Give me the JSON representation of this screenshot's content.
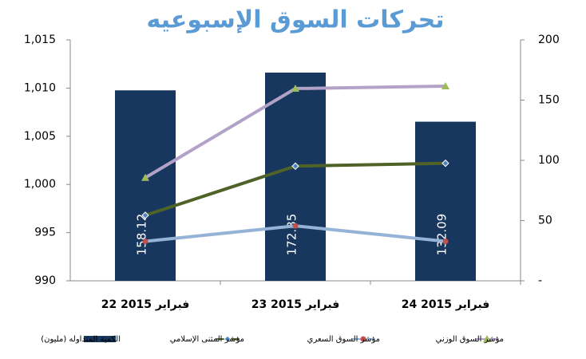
{
  "chart_data": {
    "type": "bar-line",
    "title": "تحركات السوق الإسبوعيه",
    "categories": [
      "22 فبراير 2015",
      "23 فبراير 2015",
      "24 فبراير 2015"
    ],
    "series": [
      {
        "name": "الكمية المتداوله (مليون)",
        "type": "bar",
        "axis": "y2",
        "color": "#17375e",
        "values": [
          158.12,
          172.85,
          132.09
        ]
      },
      {
        "name": "مؤشر المثنى الإسلامي",
        "type": "line",
        "color": "#4f6228",
        "marker_color": "#4f81bd",
        "marker": "diamond",
        "values": [
          996.8,
          1001.9,
          1002.2
        ]
      },
      {
        "name": "مؤشر السوق السعري",
        "type": "line",
        "color": "#95b3d7",
        "marker_color": "#c0504d",
        "marker": "circle",
        "values": [
          994.1,
          995.7,
          994.1
        ]
      },
      {
        "name": "مؤشر السوق الوزني",
        "type": "line",
        "color": "#b3a2c7",
        "marker_color": "#9bbb59",
        "marker": "triangle",
        "values": [
          1000.7,
          1009.95,
          1010.2
        ]
      }
    ],
    "ylim": [
      990,
      1015
    ],
    "yticks": [
      990,
      995,
      {
        "value": 1000,
        "label": "1,000"
      },
      {
        "value": 1005,
        "label": "1,005"
      },
      {
        "value": 1010,
        "label": "1,010"
      },
      {
        "value": 1015,
        "label": "1,015"
      }
    ],
    "y2lim": [
      0,
      200
    ],
    "y2ticks": [
      {
        "value": 0,
        "label": "-"
      },
      50,
      100,
      150,
      200
    ]
  }
}
